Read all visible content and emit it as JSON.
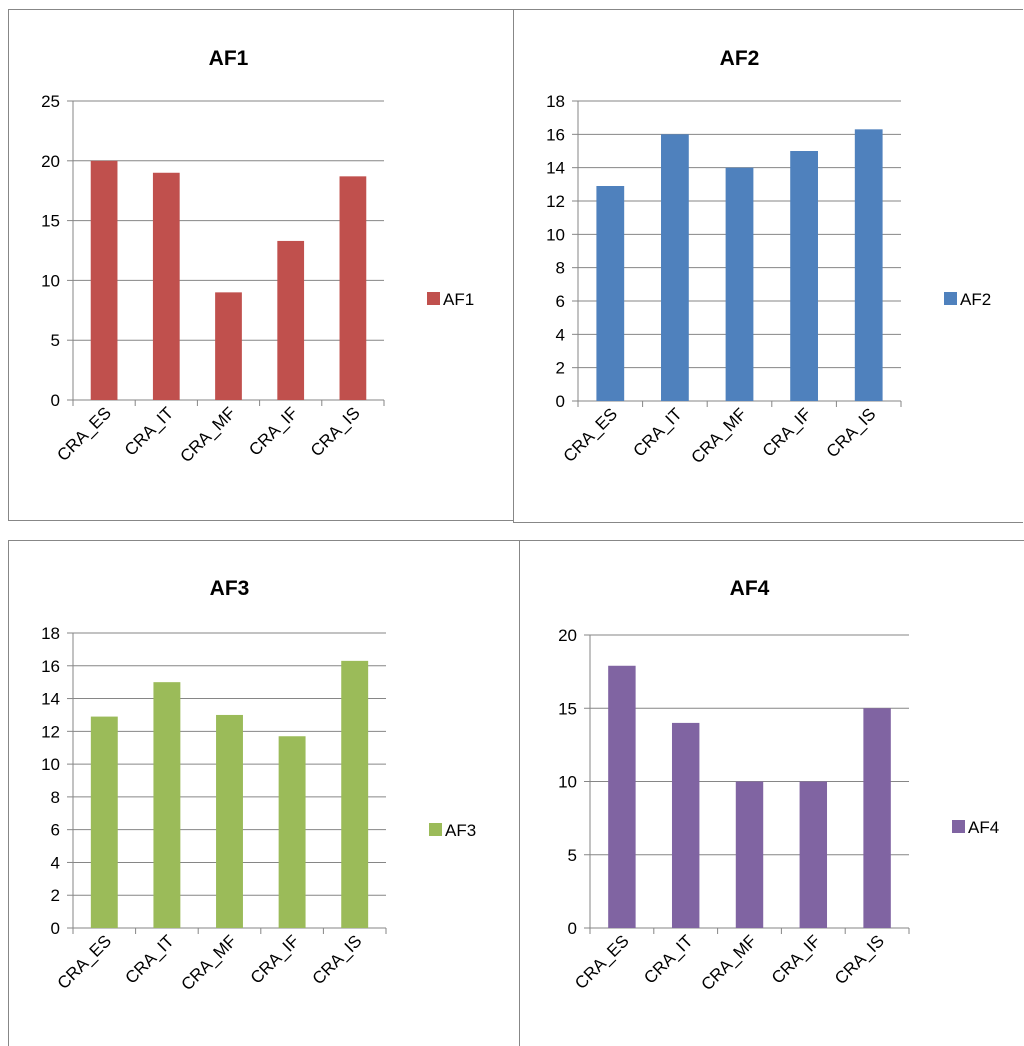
{
  "chart_data": [
    {
      "type": "bar",
      "title": "AF1",
      "categories": [
        "CRA_ES",
        "CRA_IT",
        "CRA_MF",
        "CRA_IF",
        "CRA_IS"
      ],
      "series": [
        {
          "name": "AF1",
          "values": [
            20,
            19,
            9,
            13.3,
            18.7
          ]
        }
      ],
      "ylim": [
        0,
        25
      ],
      "yticks": [
        0,
        5,
        10,
        15,
        20,
        25
      ],
      "grid": true,
      "legend": "right",
      "color": "#C0504D"
    },
    {
      "type": "bar",
      "title": "AF2",
      "categories": [
        "CRA_ES",
        "CRA_IT",
        "CRA_MF",
        "CRA_IF",
        "CRA_IS"
      ],
      "series": [
        {
          "name": "AF2",
          "values": [
            12.9,
            16,
            14,
            15,
            16.3
          ]
        }
      ],
      "ylim": [
        0,
        18
      ],
      "yticks": [
        0,
        2,
        4,
        6,
        8,
        10,
        12,
        14,
        16,
        18
      ],
      "grid": true,
      "legend": "right",
      "color": "#4F81BD"
    },
    {
      "type": "bar",
      "title": "AF3",
      "categories": [
        "CRA_ES",
        "CRA_IT",
        "CRA_MF",
        "CRA_IF",
        "CRA_IS"
      ],
      "series": [
        {
          "name": "AF3",
          "values": [
            12.9,
            15,
            13,
            11.7,
            16.3
          ]
        }
      ],
      "ylim": [
        0,
        18
      ],
      "yticks": [
        0,
        2,
        4,
        6,
        8,
        10,
        12,
        14,
        16,
        18
      ],
      "grid": true,
      "legend": "right",
      "color": "#9BBB59"
    },
    {
      "type": "bar",
      "title": "AF4",
      "categories": [
        "CRA_ES",
        "CRA_IT",
        "CRA_MF",
        "CRA_IF",
        "CRA_IS"
      ],
      "series": [
        {
          "name": "AF4",
          "values": [
            17.9,
            14,
            10,
            10,
            15
          ]
        }
      ],
      "ylim": [
        0,
        20
      ],
      "yticks": [
        0,
        5,
        10,
        15,
        20
      ],
      "grid": true,
      "legend": "right",
      "color": "#8064A2"
    }
  ]
}
